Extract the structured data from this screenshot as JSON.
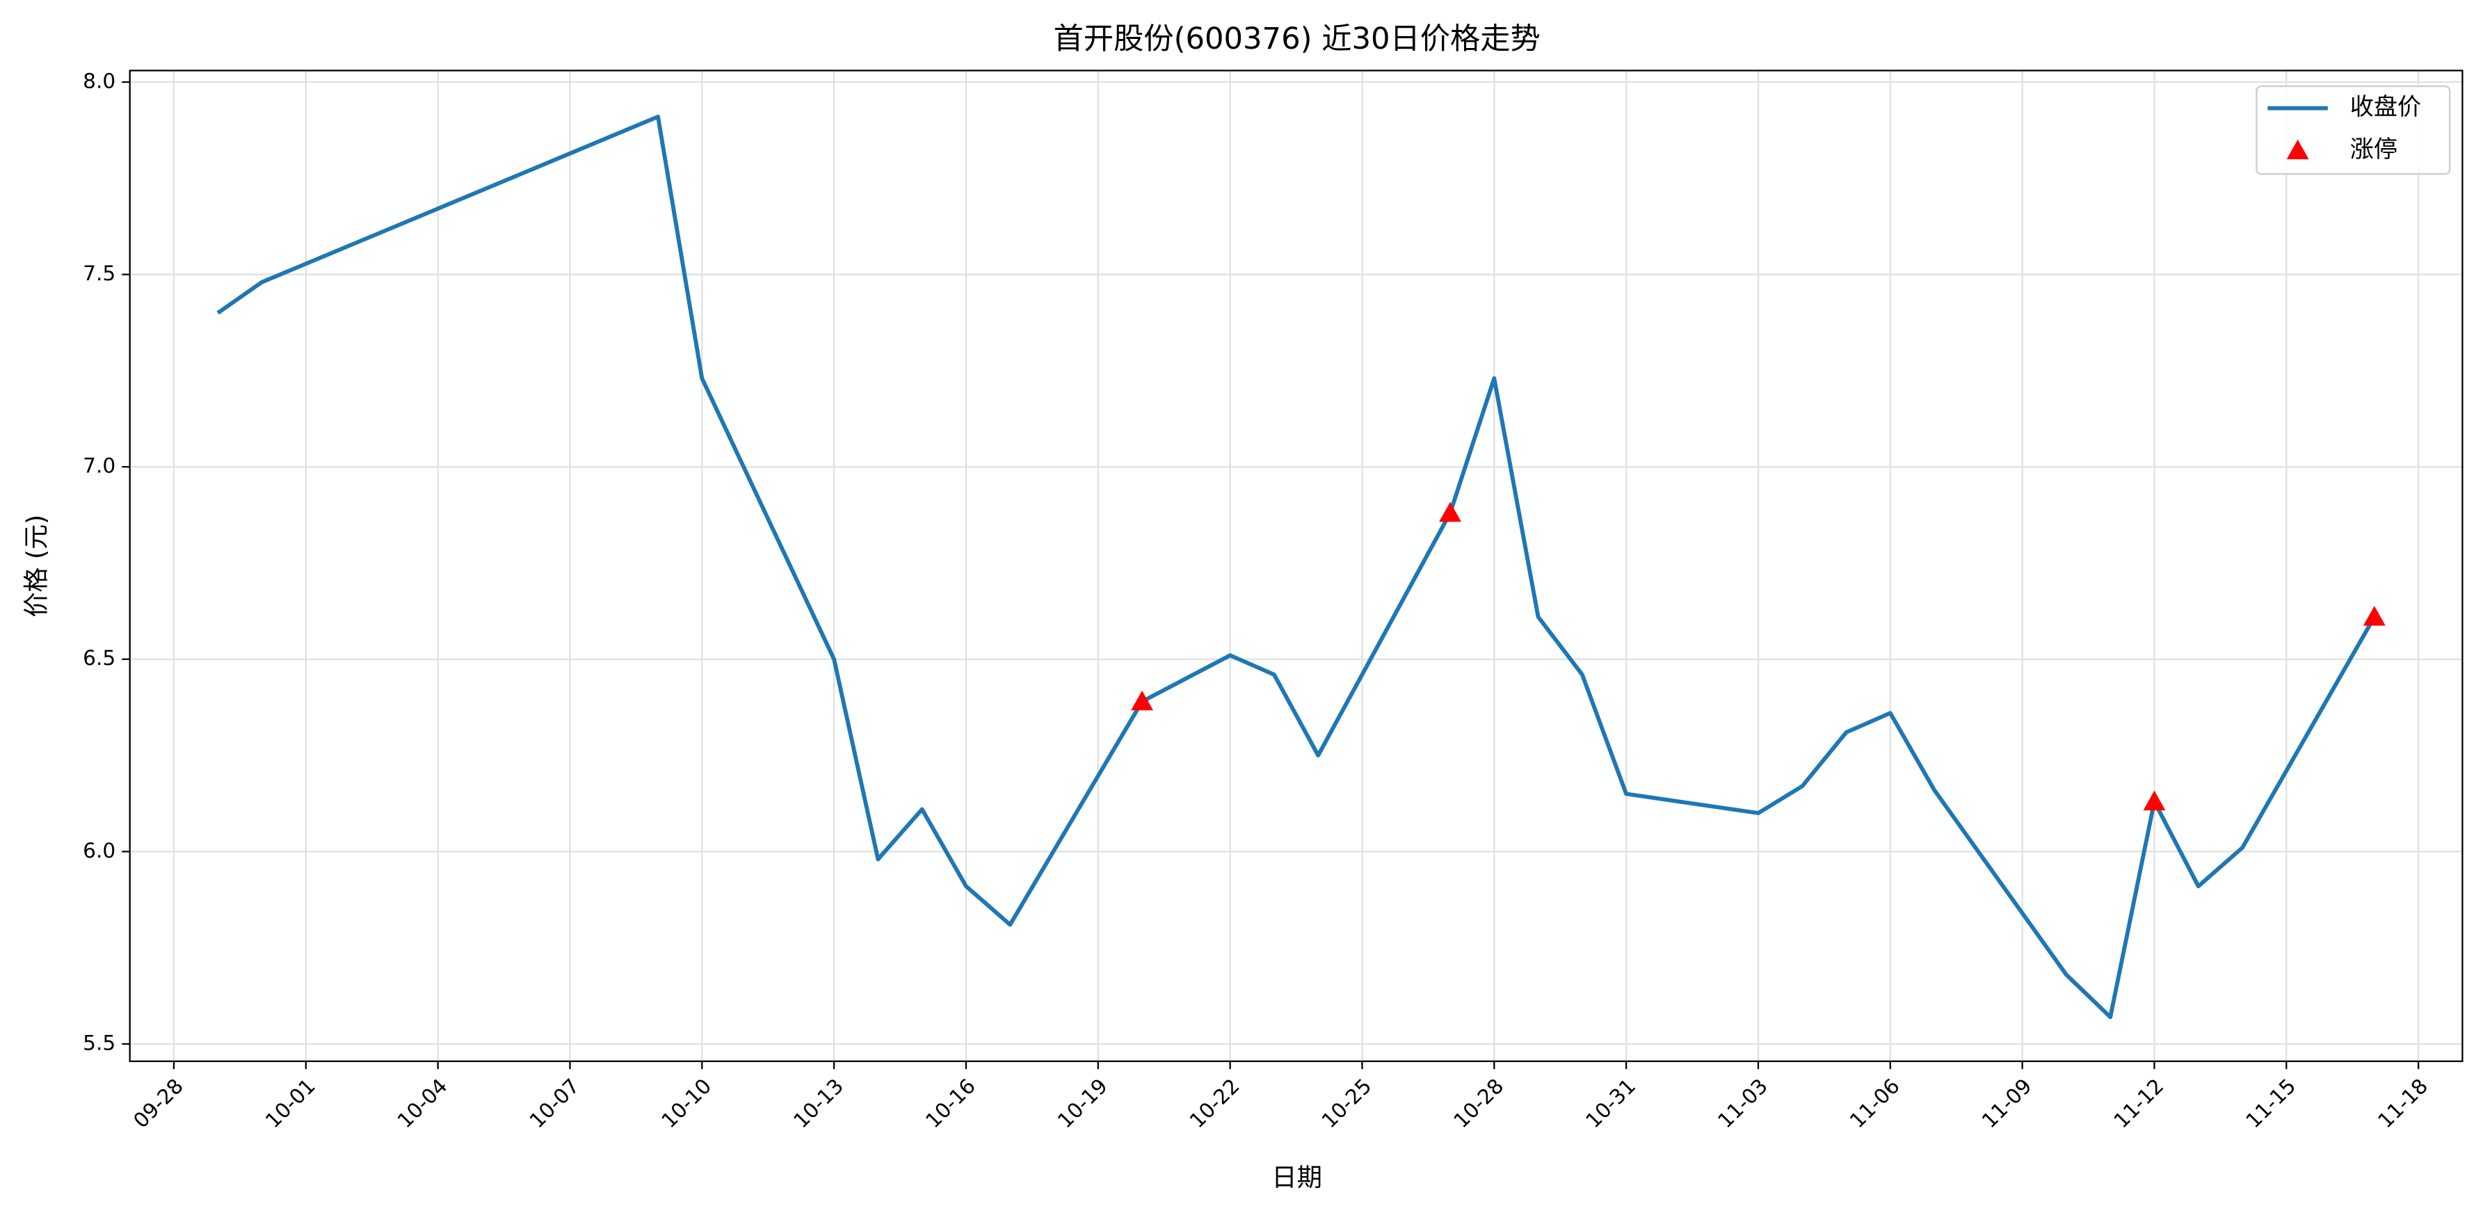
{
  "chart_data": {
    "type": "line",
    "title": "首开股份(600376) 近30日价格走势",
    "x_label": "日期",
    "y_label": "价格 (元)",
    "series": [
      {
        "name": "收盘价",
        "color": "#1f77b4",
        "x": [
          "09-29",
          "09-30",
          "10-09",
          "10-10",
          "10-13",
          "10-14",
          "10-15",
          "10-16",
          "10-17",
          "10-20",
          "10-22",
          "10-23",
          "10-24",
          "10-27",
          "10-28",
          "10-29",
          "10-30",
          "10-31",
          "11-03",
          "11-04",
          "11-05",
          "11-06",
          "11-07",
          "11-10",
          "11-11",
          "11-12",
          "11-13",
          "11-14",
          "11-17"
        ],
        "values": [
          7.4,
          7.48,
          7.91,
          7.23,
          6.5,
          5.98,
          6.11,
          5.91,
          5.81,
          6.39,
          6.51,
          6.46,
          6.25,
          6.88,
          7.23,
          6.61,
          6.46,
          6.15,
          6.1,
          6.17,
          6.31,
          6.36,
          6.16,
          5.68,
          5.57,
          6.13,
          5.91,
          6.01,
          6.61
        ]
      },
      {
        "name": "涨停",
        "color": "#ff0000",
        "marker": "triangle",
        "x": [
          "10-20",
          "10-27",
          "11-12",
          "11-17"
        ],
        "values": [
          6.39,
          6.88,
          6.13,
          6.61
        ]
      }
    ],
    "xlim": [
      "09-27",
      "11-19"
    ],
    "xticks": [
      "09-28",
      "10-01",
      "10-04",
      "10-07",
      "10-10",
      "10-13",
      "10-16",
      "10-19",
      "10-22",
      "10-25",
      "10-28",
      "10-31",
      "11-03",
      "11-06",
      "11-09",
      "11-12",
      "11-15",
      "11-18"
    ],
    "ylim": [
      5.455,
      8.03
    ],
    "yticks": [
      {
        "value": 5.5,
        "label": "5.5"
      },
      {
        "value": 6,
        "label": "6.0"
      },
      {
        "value": 6.5,
        "label": "6.5"
      },
      {
        "value": 7,
        "label": "7.0"
      },
      {
        "value": 7.5,
        "label": "7.5"
      },
      {
        "value": 8,
        "label": "8.0"
      }
    ],
    "grid": true,
    "legend": "upper right"
  }
}
